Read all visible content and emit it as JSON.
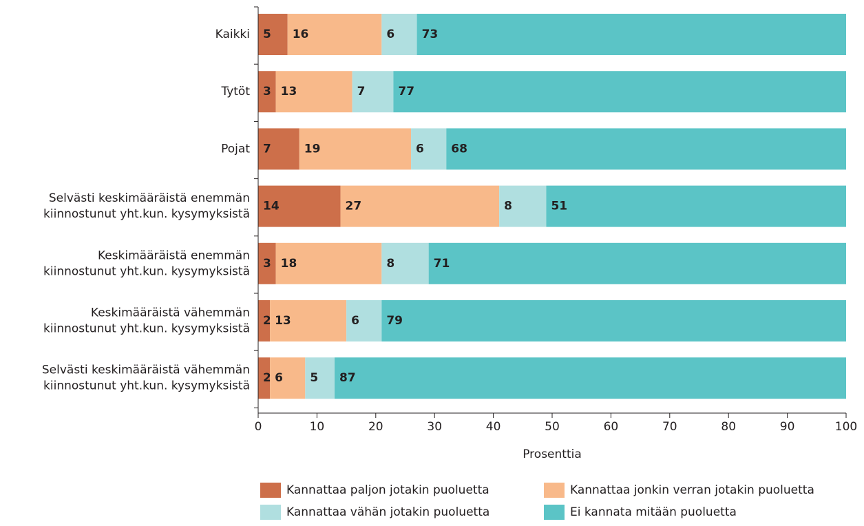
{
  "chart_data": {
    "type": "stacked_bar_horizontal",
    "categories": [
      "Kaikki",
      "Tytöt",
      "Pojat",
      "Selvästi keskimääräistä enemmän\nkiinnostunut yht.kun. kysymyksistä",
      "Keskimääräistä enemmän\nkiinnostunut yht.kun. kysymyksistä",
      "Keskimääräistä vähemmän\nkiinnostunut yht.kun. kysymyksistä",
      "Selvästi keskimääräistä vähemmän\nkiinnostunut yht.kun. kysymyksistä"
    ],
    "series": [
      {
        "name": "Kannattaa paljon jotakin puoluetta",
        "color": "#cd6f4a",
        "values": [
          5,
          3,
          7,
          14,
          3,
          2,
          2
        ]
      },
      {
        "name": "Kannattaa jonkin verran jotakin puoluetta",
        "color": "#f8b98a",
        "values": [
          16,
          13,
          19,
          27,
          18,
          13,
          6
        ]
      },
      {
        "name": "Kannattaa vähän jotakin puoluetta",
        "color": "#b0dfe0",
        "values": [
          6,
          7,
          6,
          8,
          8,
          6,
          5
        ]
      },
      {
        "name": "Ei kannata mitään puoluetta",
        "color": "#5bc4c6",
        "values": [
          73,
          77,
          68,
          51,
          71,
          79,
          87
        ]
      }
    ],
    "xlabel": "Prosenttia",
    "xlim": [
      0,
      100
    ],
    "xticks": [
      0,
      10,
      20,
      30,
      40,
      50,
      60,
      70,
      80,
      90,
      100
    ]
  }
}
